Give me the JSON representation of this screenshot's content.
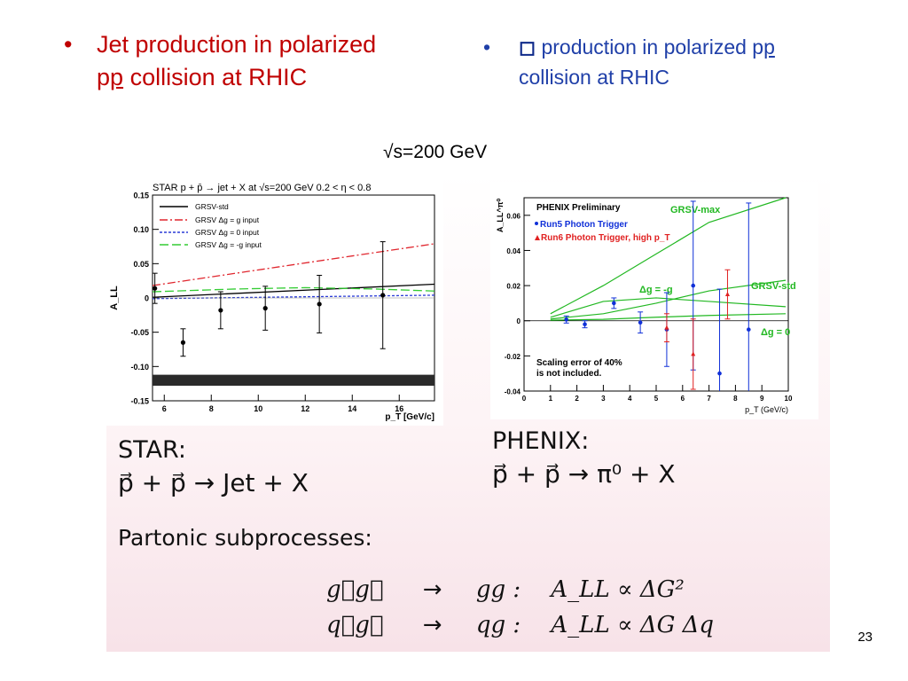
{
  "bullets": {
    "left": {
      "marker": "•",
      "line1": "Jet production in polarized",
      "line2_pre": "p",
      "line2_under": "p",
      "line2_post": " collision at RHIC"
    },
    "right": {
      "marker": "•",
      "symbol": "◻",
      "line1_pre": " production in polarized p",
      "line1_under": "p",
      "line2": "collision at RHIC"
    }
  },
  "energy_label": "√s=200 GeV",
  "star_text": {
    "title": "STAR:",
    "equation": "p⃗ + p⃗ → Jet + X"
  },
  "phenix_text": {
    "title": "PHENIX:",
    "equation": "p⃗ + p⃗ → π⁰ + X"
  },
  "partonic": {
    "heading": "Partonic subprocesses:",
    "rows": [
      {
        "lhs": "g⃗g⃗",
        "arrow": "→",
        "final": "gg :",
        "asym": "A_LL ∝ ΔG²"
      },
      {
        "lhs": "q⃗g⃗",
        "arrow": "→",
        "final": "qg :",
        "asym": "A_LL ∝ ΔG Δq"
      }
    ]
  },
  "page_number": "23",
  "colors": {
    "red_title": "#c00000",
    "blue_title": "#1f3fa8",
    "green_curve": "#22b822"
  },
  "chart_data": [
    {
      "type": "scatter",
      "title": "STAR  p + p̄ → jet + X at √s=200 GeV   0.2 < η < 0.8",
      "xlabel": "p_T [GeV/c]",
      "ylabel": "A_LL",
      "xlim": [
        5.5,
        17.5
      ],
      "ylim": [
        -0.15,
        0.15
      ],
      "xticks": [
        6,
        8,
        10,
        12,
        14,
        16
      ],
      "yticks": [
        0.15,
        0.1,
        0.05,
        0,
        -0.05,
        -0.1,
        -0.15
      ],
      "ytick_labels": [
        "0.15",
        "0.10",
        "0.05",
        "0",
        "-0.05",
        "-0.10",
        "-0.15"
      ],
      "legend": [
        "GRSV-std",
        "GRSV  Δg = g input",
        "GRSV  Δg = 0 input",
        "GRSV  Δg = -g input"
      ],
      "points": [
        {
          "x": 5.6,
          "y": 0.014,
          "err": 0.022
        },
        {
          "x": 6.8,
          "y": -0.065,
          "err": 0.02
        },
        {
          "x": 8.4,
          "y": -0.018,
          "err": 0.027
        },
        {
          "x": 10.3,
          "y": -0.015,
          "err": 0.032
        },
        {
          "x": 12.6,
          "y": -0.009,
          "err": 0.042
        },
        {
          "x": 15.3,
          "y": 0.004,
          "err": 0.078
        }
      ],
      "curves": [
        {
          "name": "GRSV-std",
          "color": "#000000",
          "x": [
            5.5,
            17.5
          ],
          "y": [
            0.001,
            0.02
          ]
        },
        {
          "name": "Δg = g",
          "color": "#e0262e",
          "x": [
            5.5,
            17.5
          ],
          "y": [
            0.018,
            0.079
          ]
        },
        {
          "name": "Δg = 0",
          "color": "#2a3bd6",
          "x": [
            5.5,
            17.5
          ],
          "y": [
            -0.001,
            0.004
          ]
        },
        {
          "name": "Δg = -g",
          "color": "#33cc33",
          "x": [
            5.5,
            9,
            12,
            15,
            17.5
          ],
          "y": [
            0.009,
            0.013,
            0.015,
            0.013,
            0.01
          ]
        }
      ],
      "systematic_band": {
        "x_range": [
          5.5,
          17.5
        ],
        "y_range": [
          -0.128,
          -0.112
        ]
      }
    },
    {
      "type": "scatter",
      "title": "PHENIX Preliminary",
      "xlabel": "p_T (GeV/c)",
      "ylabel": "A_LL^π⁰",
      "xlim": [
        0,
        10
      ],
      "ylim": [
        -0.04,
        0.07
      ],
      "xticks": [
        0,
        1,
        2,
        3,
        4,
        5,
        6,
        7,
        8,
        9,
        10
      ],
      "yticks": [
        0.06,
        0.04,
        0.02,
        0,
        -0.02,
        -0.04
      ],
      "ytick_labels": [
        "0.06",
        "0.04",
        "0.02",
        "0",
        "-0.02",
        "-0.04"
      ],
      "legend": [
        "Run5 Photon Trigger",
        "Run6 Photon Trigger, high p_T"
      ],
      "annotations": [
        "GRSV-max",
        "Δg = -g",
        "GRSV-std",
        "Δg = 0",
        "Scaling error of 40%",
        "is not included."
      ],
      "series": [
        {
          "name": "Run5 Photon Trigger",
          "color": "#1030d8",
          "points": [
            {
              "x": 1.6,
              "y": 0.0007,
              "err": 0.002
            },
            {
              "x": 2.3,
              "y": -0.002,
              "err": 0.002
            },
            {
              "x": 3.4,
              "y": 0.01,
              "err": 0.003
            },
            {
              "x": 4.4,
              "y": -0.001,
              "err": 0.006
            },
            {
              "x": 5.4,
              "y": -0.005,
              "err": 0.021
            },
            {
              "x": 6.4,
              "y": 0.02,
              "err": 0.048
            },
            {
              "x": 7.4,
              "y": -0.03,
              "err": 0.048
            },
            {
              "x": 8.5,
              "y": -0.005,
              "err": 0.072
            }
          ]
        },
        {
          "name": "Run6 Photon Trigger, high p_T",
          "color": "#e02020",
          "points": [
            {
              "x": 5.4,
              "y": -0.004,
              "err": 0.008
            },
            {
              "x": 6.4,
              "y": -0.019,
              "err": 0.02
            },
            {
              "x": 7.7,
              "y": 0.015,
              "err": 0.014
            }
          ]
        }
      ],
      "curves": [
        {
          "name": "GRSV-max",
          "color": "#22b822",
          "x": [
            1,
            3,
            5,
            7,
            9.9
          ],
          "y": [
            0.004,
            0.02,
            0.038,
            0.056,
            0.07
          ]
        },
        {
          "name": "Δg = -g",
          "color": "#22b822",
          "x": [
            1,
            3,
            5,
            7,
            9.9
          ],
          "y": [
            0.002,
            0.011,
            0.013,
            0.011,
            0.008
          ]
        },
        {
          "name": "GRSV-std",
          "color": "#22b822",
          "x": [
            1,
            3,
            5,
            7,
            9.9
          ],
          "y": [
            0.001,
            0.004,
            0.01,
            0.017,
            0.023
          ]
        },
        {
          "name": "Δg = 0",
          "color": "#22b822",
          "x": [
            1,
            3,
            5,
            7,
            9.9
          ],
          "y": [
            0.0003,
            0.0008,
            0.002,
            0.003,
            0.004
          ]
        }
      ]
    }
  ]
}
